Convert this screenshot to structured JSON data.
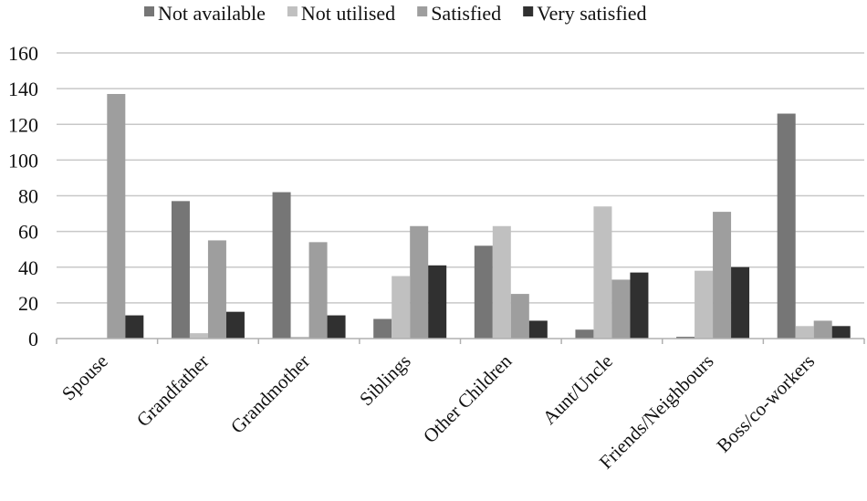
{
  "chart_data": {
    "type": "bar",
    "title": "",
    "xlabel": "",
    "ylabel": "",
    "ylim": [
      0,
      160
    ],
    "yticks": [
      0,
      20,
      40,
      60,
      80,
      100,
      120,
      140,
      160
    ],
    "grid": true,
    "legend_position": "top",
    "categories": [
      "Spouse",
      "Grandfather",
      "Grandmother",
      "Siblings",
      "Other Children",
      "Aunt/Uncle",
      "Friends/Neighbours",
      "Boss/co-workers"
    ],
    "series": [
      {
        "name": "Not available",
        "color": "#767676",
        "values": [
          0,
          77,
          82,
          11,
          52,
          5,
          1,
          126
        ]
      },
      {
        "name": "Not utilised",
        "color": "#c0c0c0",
        "values": [
          0,
          3,
          1,
          35,
          63,
          74,
          38,
          7
        ]
      },
      {
        "name": "Satisfied",
        "color": "#9e9e9e",
        "values": [
          137,
          55,
          54,
          63,
          25,
          33,
          71,
          10
        ]
      },
      {
        "name": "Very satisfied",
        "color": "#303030",
        "values": [
          13,
          15,
          13,
          41,
          10,
          37,
          40,
          7
        ]
      }
    ]
  }
}
